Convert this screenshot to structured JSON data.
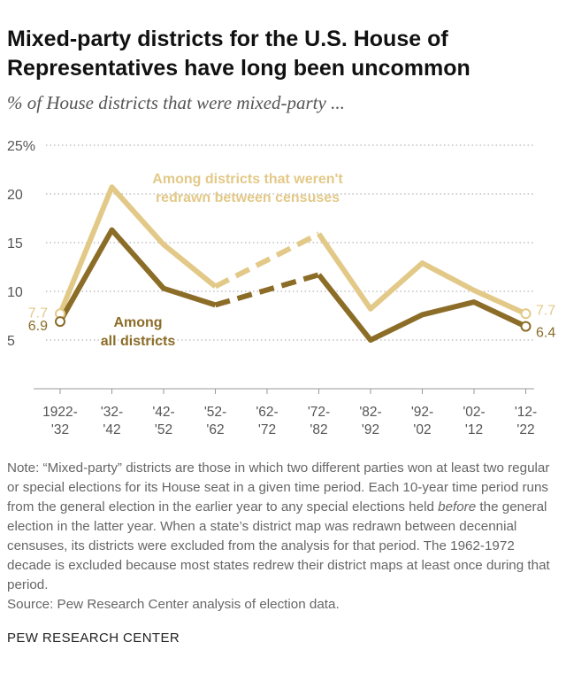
{
  "title": "Mixed-party districts for the U.S. House of Representatives have long been uncommon",
  "subtitle": "% of House districts that were mixed-party ...",
  "chart_data": {
    "type": "line",
    "categories": [
      [
        "1922-",
        "'32"
      ],
      [
        "'32-",
        "'42"
      ],
      [
        "'42-",
        "'52"
      ],
      [
        "'52-",
        "'62"
      ],
      [
        "'62-",
        "'72"
      ],
      [
        "'72-",
        "'82"
      ],
      [
        "'82-",
        "'92"
      ],
      [
        "'92-",
        "'02"
      ],
      [
        "'02-",
        "'12"
      ],
      [
        "'12-",
        "'22"
      ]
    ],
    "y_ticks": [
      "25%",
      "20",
      "15",
      "10",
      "5"
    ],
    "y_tick_values": [
      25,
      20,
      15,
      10,
      5
    ],
    "ylim": [
      0,
      25
    ],
    "grid": true,
    "excluded_period": "'62-'72",
    "series": [
      {
        "name": "Among districts that weren't redrawn between censuses",
        "label_lines": [
          "Among districts that weren't",
          "redrawn between censuses"
        ],
        "color": "#e3c988",
        "values": [
          7.7,
          20.7,
          14.8,
          10.5,
          null,
          15.9,
          8.2,
          12.9,
          10.1,
          7.7
        ],
        "start_label": "7.7",
        "end_label": "7.7"
      },
      {
        "name": "Among all districts",
        "label_lines": [
          "Among",
          "all districts"
        ],
        "color": "#8c6d27",
        "values": [
          6.9,
          16.3,
          10.3,
          8.6,
          null,
          11.7,
          5.0,
          7.6,
          8.9,
          6.4
        ],
        "start_label": "6.9",
        "end_label": "6.4"
      }
    ]
  },
  "note_parts": {
    "before_em": "Note: “Mixed-party” districts are those in which two different parties won at least two regular or special elections for its House seat in a given time period. Each 10-year time period runs from the general election in the earlier year to any special elections held ",
    "em": "before",
    "after_em": " the general election in the latter year. When a state’s district map was redrawn between decennial censuses, its districts were excluded from the analysis for that period. The 1962-1972 decade is excluded because most states redrew their district maps at least once during that period."
  },
  "source": "Source: Pew Research Center analysis of election data.",
  "footer": "PEW RESEARCH CENTER"
}
